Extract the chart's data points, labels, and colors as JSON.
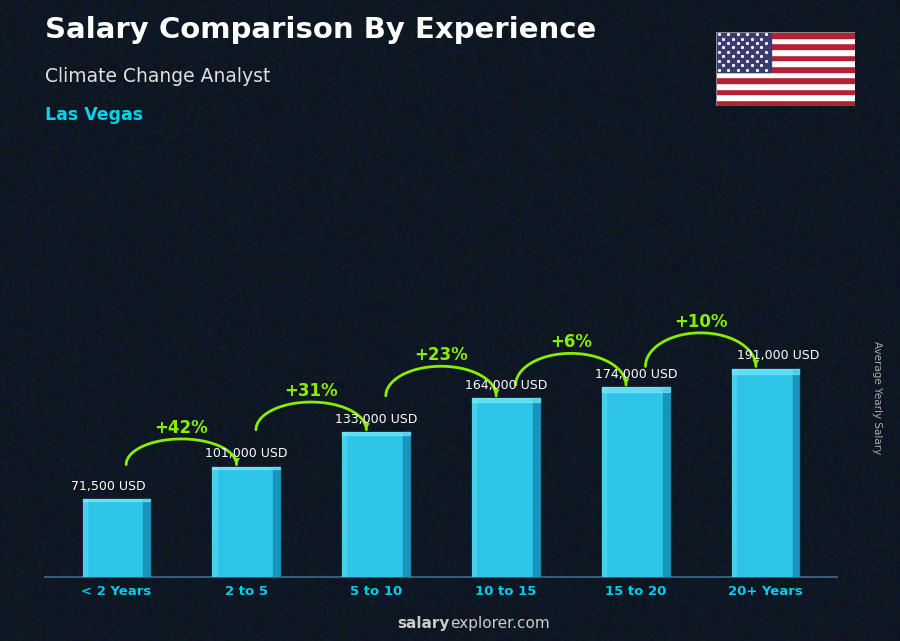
{
  "title": "Salary Comparison By Experience",
  "subtitle": "Climate Change Analyst",
  "city": "Las Vegas",
  "ylabel": "Average Yearly Salary",
  "footer_bold": "salary",
  "footer_normal": "explorer.com",
  "categories": [
    "< 2 Years",
    "2 to 5",
    "5 to 10",
    "10 to 15",
    "15 to 20",
    "20+ Years"
  ],
  "values": [
    71500,
    101000,
    133000,
    164000,
    174000,
    191000
  ],
  "labels": [
    "71,500 USD",
    "101,000 USD",
    "133,000 USD",
    "164,000 USD",
    "174,000 USD",
    "191,000 USD"
  ],
  "pct_labels": [
    "+42%",
    "+31%",
    "+23%",
    "+6%",
    "+10%"
  ],
  "bar_color_face": "#2ec4e8",
  "bar_color_light": "#5dd8f0",
  "bar_color_dark": "#1590b8",
  "bar_color_top": "#3dd0f0",
  "background_color": "#1e2d3d",
  "title_color": "#ffffff",
  "subtitle_color": "#e0e0e0",
  "city_color": "#00d4e8",
  "label_color": "#ffffff",
  "pct_color": "#88ee00",
  "arrow_color": "#88ee00",
  "footer_color": "#cccccc",
  "ylabel_color": "#aaaaaa",
  "xtick_color": "#00ccee"
}
